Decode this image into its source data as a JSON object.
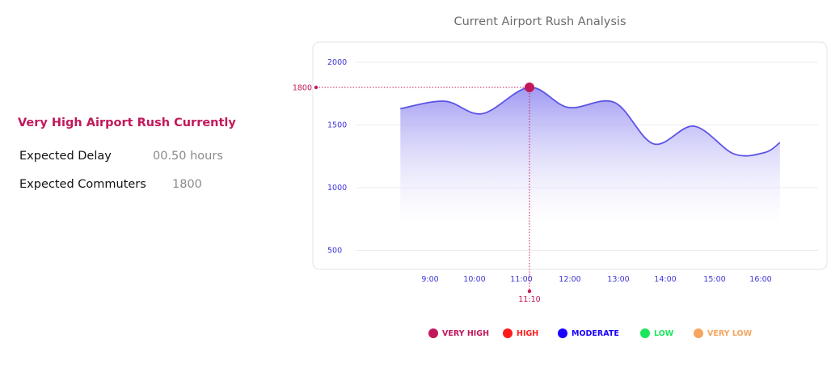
{
  "summary": {
    "status_title": "Very High Airport Rush Currently",
    "rows": [
      {
        "label": "Expected Delay",
        "value": "00.50 hours"
      },
      {
        "label": "Expected Commuters",
        "value": "1800"
      }
    ]
  },
  "chart_data": {
    "type": "area",
    "title": "Current Airport Rush Analysis",
    "x_ticks": [
      "9:00",
      "10:00",
      "11:00",
      "12:00",
      "13:00",
      "14:00",
      "15:00",
      "16:00"
    ],
    "y_ticks": [
      2000,
      1500,
      1000,
      500
    ],
    "ylim": [
      500,
      2000
    ],
    "grid": true,
    "series": [
      {
        "values": [
          {
            "x": "8:20",
            "y": 1630
          },
          {
            "x": "9:20",
            "y": 1690
          },
          {
            "x": "10:10",
            "y": 1590
          },
          {
            "x": "11:10",
            "y": 1800
          },
          {
            "x": "11:58",
            "y": 1640
          },
          {
            "x": "12:55",
            "y": 1680
          },
          {
            "x": "13:45",
            "y": 1350
          },
          {
            "x": "14:35",
            "y": 1490
          },
          {
            "x": "15:25",
            "y": 1270
          },
          {
            "x": "16:05",
            "y": 1280
          },
          {
            "x": "16:25",
            "y": 1360
          }
        ],
        "color": "#5b53e6"
      }
    ],
    "highlight": {
      "x": "11:10",
      "y": 1800,
      "x_label": "11:10",
      "y_label": "1800",
      "color": "#c2185b"
    },
    "legend_position": "bottom",
    "legend": [
      {
        "label": "VERY HIGH",
        "color": "#c2185b"
      },
      {
        "label": "HIGH",
        "color": "#ff1a1a"
      },
      {
        "label": "MODERATE",
        "color": "#1a00ff"
      },
      {
        "label": "LOW",
        "color": "#19e65c"
      },
      {
        "label": "VERY LOW",
        "color": "#f5a55f"
      }
    ]
  }
}
